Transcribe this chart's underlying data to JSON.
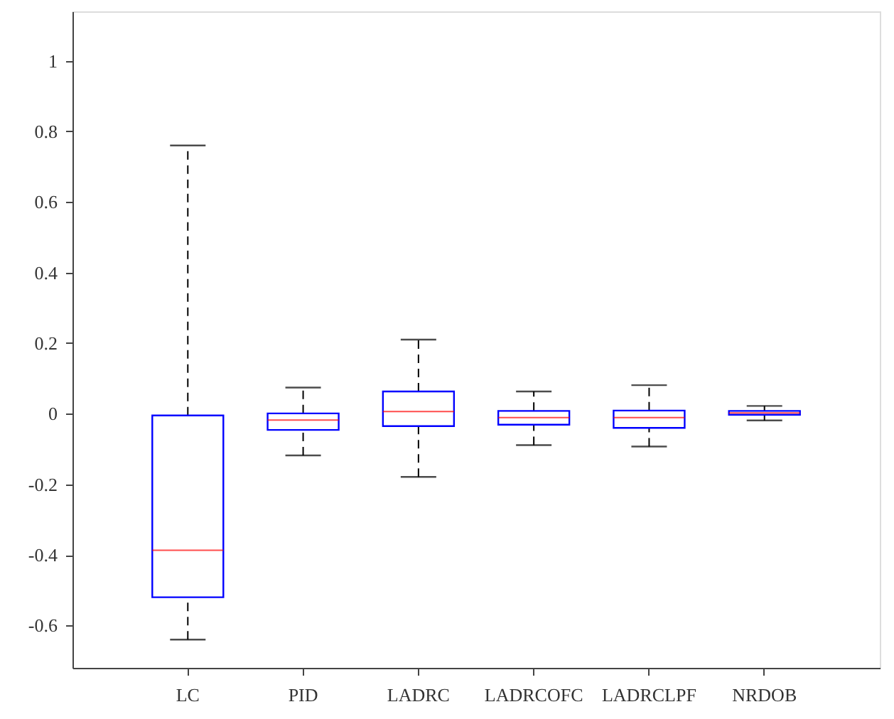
{
  "chart_data": {
    "type": "box",
    "categories": [
      "LC",
      "PID",
      "LADRC",
      "LADRCOFC",
      "LADRCLPF",
      "NRDOB"
    ],
    "boxes": [
      {
        "low": -0.64,
        "q1": -0.52,
        "median": -0.387,
        "q3": -0.005,
        "high": 0.76
      },
      {
        "low": -0.118,
        "q1": -0.046,
        "median": -0.018,
        "q3": 0.001,
        "high": 0.074
      },
      {
        "low": -0.179,
        "q1": -0.035,
        "median": 0.006,
        "q3": 0.063,
        "high": 0.21
      },
      {
        "low": -0.089,
        "q1": -0.031,
        "median": -0.011,
        "q3": 0.008,
        "high": 0.063
      },
      {
        "low": -0.093,
        "q1": -0.04,
        "median": -0.011,
        "q3": 0.009,
        "high": 0.081
      },
      {
        "low": -0.019,
        "q1": -0.003,
        "median": 0.002,
        "q3": 0.008,
        "high": 0.022
      }
    ],
    "color": "#0000ff",
    "ylim": [
      -0.72,
      1.14
    ],
    "yticks": [
      -0.6,
      -0.4,
      -0.2,
      0,
      0.2,
      0.4,
      0.6,
      0.8,
      1
    ],
    "grid": false,
    "line_style": "dashed"
  }
}
